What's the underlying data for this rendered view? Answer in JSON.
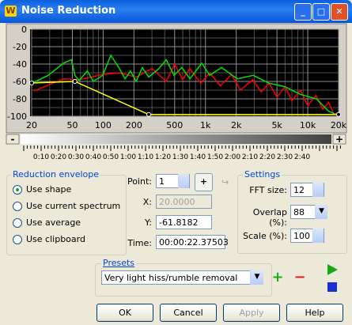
{
  "window": {
    "title": "Noise Reduction",
    "icon": "W"
  },
  "chart_data": {
    "type": "line",
    "xscale": "log",
    "grid": true,
    "xlim": [
      20,
      20000
    ],
    "ylim": [
      -100,
      0
    ],
    "xticks": [
      20,
      50,
      100,
      200,
      500,
      {
        "value": 1000,
        "label": "1k"
      },
      {
        "value": 2000,
        "label": "2k"
      },
      {
        "value": 5000,
        "label": "5k"
      },
      {
        "value": 10000,
        "label": "10k"
      },
      {
        "value": 20000,
        "label": "20k"
      }
    ],
    "x_minor_grid": [
      30,
      40,
      60,
      70,
      80,
      90,
      300,
      400,
      600,
      700,
      800,
      900,
      3000,
      4000,
      6000,
      7000,
      8000,
      9000
    ],
    "yticks": [
      0,
      -20,
      -40,
      -60,
      -80,
      -100
    ],
    "y_minor_grid": [
      -10,
      -30,
      -50,
      -70,
      -90
    ],
    "series": [
      {
        "color": "#ff0000",
        "x": [
          21,
          41,
          58,
          99,
          142,
          210,
          300,
          413,
          500,
          600,
          700,
          900,
          1100,
          1400,
          1800,
          2200,
          2900,
          3500,
          4200,
          5000,
          6000,
          7000,
          8500,
          10000,
          12000,
          14000,
          16000,
          18000,
          20000
        ],
        "values": [
          -71,
          -57,
          -58,
          -52,
          -50,
          -55,
          -45,
          -60,
          -40,
          -58,
          -45,
          -62,
          -50,
          -65,
          -52,
          -70,
          -58,
          -72,
          -62,
          -78,
          -66,
          -82,
          -70,
          -88,
          -76,
          -92,
          -84,
          -98,
          -96
        ]
      },
      {
        "color": "#00e000",
        "x": [
          21,
          29,
          41,
          49,
          53,
          58,
          70,
          80,
          99,
          119,
          142,
          164,
          185,
          210,
          242,
          279,
          345,
          413,
          493,
          589,
          705,
          920,
          1100,
          1436,
          2050,
          2930,
          4180,
          5970,
          8530,
          12170,
          15900,
          19000
        ],
        "values": [
          -61,
          -53,
          -39,
          -35,
          -53,
          -59,
          -48,
          -60,
          -53,
          -30,
          -44,
          -57,
          -48,
          -60,
          -44,
          -55,
          -46,
          -35,
          -53,
          -44,
          -57,
          -39,
          -53,
          -44,
          -57,
          -53,
          -62,
          -66,
          -75,
          -80,
          -94,
          -98
        ]
      },
      {
        "color": "#ffff00",
        "markers": true,
        "x": [
          20,
          53,
          279,
          20000
        ],
        "values": [
          -61.8182,
          -60,
          -98,
          -98
        ]
      }
    ]
  },
  "time_ruler": {
    "minus": "-",
    "plus": "+",
    "labels": [
      "0:10",
      "0:20",
      "0:30",
      "0:40",
      "0:50",
      "1:00",
      "1:10",
      "1:20",
      "1:30",
      "1:40",
      "1:50",
      "2:00",
      "2:10",
      "2:20",
      "2:30",
      "2:40"
    ]
  },
  "reduction_envelope": {
    "title": "Reduction envelope",
    "options": [
      "Use shape",
      "Use current spectrum",
      "Use average",
      "Use clipboard"
    ],
    "selected": 0
  },
  "point": {
    "label": "Point:",
    "value": "1"
  },
  "x": {
    "label": "X:",
    "value": "20.0000"
  },
  "y": {
    "label": "Y:",
    "value": "-61.8182"
  },
  "time": {
    "label": "Time:",
    "value": "00:00:22.37503"
  },
  "settings": {
    "title": "Settings",
    "fft_size": {
      "label": "FFT size:",
      "value": "12"
    },
    "overlap": {
      "label": "Overlap (%):",
      "value": "88"
    },
    "scale": {
      "label": "Scale (%):",
      "value": "100"
    }
  },
  "presets": {
    "title": "Presets",
    "value": "Very light hiss/rumble removal"
  },
  "buttons": [
    "OK",
    "Cancel",
    "Apply",
    "Help"
  ]
}
